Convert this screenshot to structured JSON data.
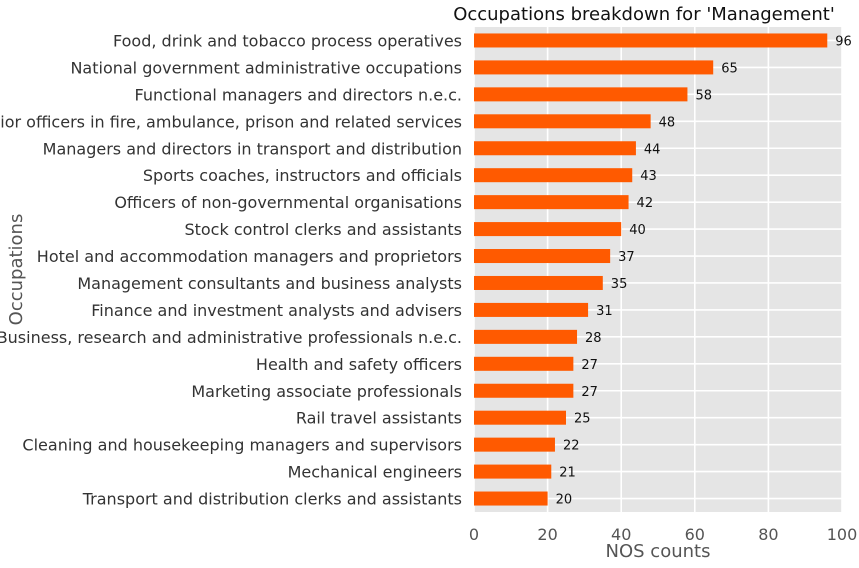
{
  "chart_data": {
    "type": "bar",
    "orientation": "horizontal",
    "title": "Occupations breakdown for 'Management'",
    "xlabel": "NOS counts",
    "ylabel": "Occupations",
    "xlim": [
      0,
      100
    ],
    "xticks": [
      0,
      20,
      40,
      60,
      80,
      100
    ],
    "grid": true,
    "bar_color": "#ff5a00",
    "background_color": "#e5e5e5",
    "categories": [
      "Food, drink and tobacco process operatives",
      "National government administrative occupations",
      "Functional managers and directors n.e.c.",
      "Senior officers in fire, ambulance, prison and related services",
      "Managers and directors in transport and distribution",
      "Sports coaches, instructors and officials",
      "Officers of non-governmental organisations",
      "Stock control clerks and assistants",
      "Hotel and accommodation managers and proprietors",
      "Management consultants and business analysts",
      "Finance and investment analysts and advisers",
      "Business, research and administrative professionals n.e.c.",
      "Health and safety officers",
      "Marketing associate professionals",
      "Rail travel assistants",
      "Cleaning and housekeeping managers and supervisors",
      "Mechanical engineers",
      "Transport and distribution clerks and assistants"
    ],
    "values": [
      96,
      65,
      58,
      48,
      44,
      43,
      42,
      40,
      37,
      35,
      31,
      28,
      27,
      27,
      25,
      22,
      21,
      20
    ]
  }
}
